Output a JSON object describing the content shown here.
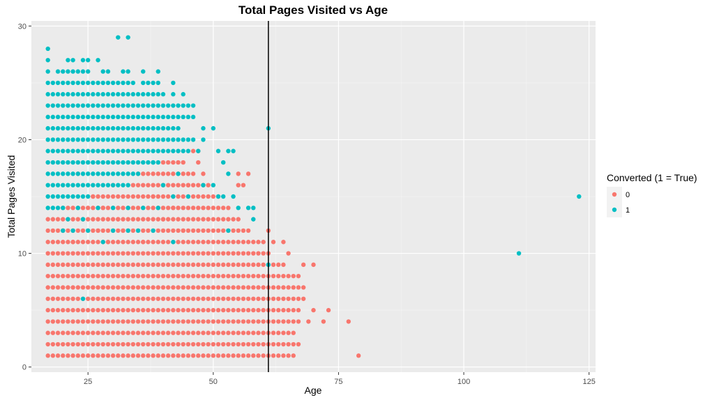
{
  "chart_data": {
    "type": "scatter",
    "title": "Total Pages Visited vs Age",
    "xlabel": "Age",
    "ylabel": "Total Pages Visited",
    "xlim": [
      13.7,
      126.3
    ],
    "ylim": [
      -0.45,
      30.45
    ],
    "x_ticks": [
      25,
      50,
      75,
      100,
      125
    ],
    "y_ticks": [
      0,
      10,
      20,
      30
    ],
    "grid": true,
    "reference_line": {
      "orientation": "vertical",
      "x": 61,
      "color": "#000000"
    },
    "legend": {
      "title": "Converted (1 = True)",
      "placement": "right"
    },
    "series": [
      {
        "name": "0",
        "color": "#F8766D",
        "row_spans": [
          {
            "y": 1,
            "x_from": 17,
            "x_to": 66
          },
          {
            "y": 2,
            "x_from": 17,
            "x_to": 67
          },
          {
            "y": 3,
            "x_from": 17,
            "x_to": 66
          },
          {
            "y": 4,
            "x_from": 17,
            "x_to": 67
          },
          {
            "y": 5,
            "x_from": 17,
            "x_to": 67
          },
          {
            "y": 6,
            "x_from": 17,
            "x_to": 68
          },
          {
            "y": 7,
            "x_from": 17,
            "x_to": 68
          },
          {
            "y": 8,
            "x_from": 17,
            "x_to": 67
          },
          {
            "y": 9,
            "x_from": 17,
            "x_to": 64
          },
          {
            "y": 10,
            "x_from": 17,
            "x_to": 61
          },
          {
            "y": 11,
            "x_from": 17,
            "x_to": 60
          },
          {
            "y": 12,
            "x_from": 17,
            "x_to": 57
          },
          {
            "y": 13,
            "x_from": 17,
            "x_to": 55
          },
          {
            "y": 14,
            "x_from": 20,
            "x_to": 53
          },
          {
            "y": 15,
            "x_from": 26,
            "x_to": 51
          },
          {
            "y": 16,
            "x_from": 34,
            "x_to": 49
          },
          {
            "y": 17,
            "x_from": 36,
            "x_to": 46
          },
          {
            "y": 18,
            "x_from": 40,
            "x_to": 44
          }
        ],
        "points": [
          [
            79,
            1
          ],
          [
            77,
            4
          ],
          [
            73,
            5
          ],
          [
            72,
            4
          ],
          [
            70,
            5
          ],
          [
            69,
            4
          ],
          [
            70,
            9
          ],
          [
            68,
            9
          ],
          [
            65,
            10
          ],
          [
            64,
            11
          ],
          [
            62,
            11
          ],
          [
            61,
            12
          ],
          [
            56,
            16
          ],
          [
            55,
            16
          ],
          [
            55,
            17
          ],
          [
            57,
            17
          ],
          [
            46,
            19
          ],
          [
            47,
            19
          ],
          [
            48,
            17
          ],
          [
            45,
            16
          ],
          [
            23,
            17
          ],
          [
            26,
            15
          ],
          [
            28,
            14
          ],
          [
            30,
            16
          ],
          [
            32,
            12
          ],
          [
            24,
            13
          ],
          [
            38,
            15
          ],
          [
            42,
            14
          ],
          [
            36,
            11
          ],
          [
            29,
            11
          ],
          [
            44,
            12
          ],
          [
            22,
            11
          ],
          [
            47,
            18
          ],
          [
            27,
            12
          ],
          [
            31,
            13
          ],
          [
            35,
            17
          ],
          [
            40,
            13
          ],
          [
            20,
            12
          ]
        ]
      },
      {
        "name": "1",
        "color": "#00BFC4",
        "row_spans": [
          {
            "y": 14,
            "x_from": 17,
            "x_to": 19
          },
          {
            "y": 15,
            "x_from": 17,
            "x_to": 25
          },
          {
            "y": 16,
            "x_from": 17,
            "x_to": 33
          },
          {
            "y": 17,
            "x_from": 17,
            "x_to": 35
          },
          {
            "y": 18,
            "x_from": 17,
            "x_to": 39
          },
          {
            "y": 19,
            "x_from": 17,
            "x_to": 45
          },
          {
            "y": 20,
            "x_from": 17,
            "x_to": 46
          },
          {
            "y": 21,
            "x_from": 17,
            "x_to": 43
          },
          {
            "y": 22,
            "x_from": 17,
            "x_to": 45
          },
          {
            "y": 23,
            "x_from": 17,
            "x_to": 46
          },
          {
            "y": 24,
            "x_from": 17,
            "x_to": 38
          },
          {
            "y": 25,
            "x_from": 17,
            "x_to": 34
          }
        ],
        "points": [
          [
            17,
            28
          ],
          [
            17,
            27
          ],
          [
            21,
            27
          ],
          [
            22,
            27
          ],
          [
            24,
            27
          ],
          [
            25,
            27
          ],
          [
            27,
            27
          ],
          [
            31,
            29
          ],
          [
            33,
            29
          ],
          [
            17,
            26
          ],
          [
            19,
            26
          ],
          [
            20,
            26
          ],
          [
            21,
            26
          ],
          [
            22,
            26
          ],
          [
            23,
            26
          ],
          [
            24,
            26
          ],
          [
            25,
            26
          ],
          [
            28,
            26
          ],
          [
            29,
            26
          ],
          [
            32,
            26
          ],
          [
            33,
            26
          ],
          [
            36,
            26
          ],
          [
            39,
            26
          ],
          [
            36,
            25
          ],
          [
            37,
            25
          ],
          [
            38,
            25
          ],
          [
            39,
            25
          ],
          [
            42,
            25
          ],
          [
            44,
            24
          ],
          [
            39,
            24
          ],
          [
            40,
            24
          ],
          [
            42,
            24
          ],
          [
            46,
            22
          ],
          [
            47,
            19
          ],
          [
            48,
            20
          ],
          [
            48,
            21
          ],
          [
            50,
            21
          ],
          [
            51,
            19
          ],
          [
            53,
            19
          ],
          [
            54,
            19
          ],
          [
            52,
            18
          ],
          [
            53,
            17
          ],
          [
            48,
            16
          ],
          [
            50,
            16
          ],
          [
            51,
            15
          ],
          [
            52,
            15
          ],
          [
            54,
            15
          ],
          [
            55,
            14
          ],
          [
            57,
            14
          ],
          [
            58,
            14
          ],
          [
            58,
            13
          ],
          [
            61,
            21
          ],
          [
            61,
            9
          ],
          [
            53,
            12
          ],
          [
            111,
            10
          ],
          [
            123,
            15
          ],
          [
            24,
            6
          ],
          [
            20,
            12
          ],
          [
            22,
            12
          ],
          [
            25,
            12
          ],
          [
            28,
            11
          ],
          [
            30,
            12
          ],
          [
            33,
            12
          ],
          [
            35,
            12
          ],
          [
            38,
            12
          ],
          [
            42,
            11
          ],
          [
            21,
            13
          ],
          [
            24,
            13
          ],
          [
            27,
            14
          ],
          [
            30,
            14
          ],
          [
            33,
            14
          ],
          [
            36,
            14
          ],
          [
            39,
            14
          ],
          [
            42,
            15
          ],
          [
            45,
            15
          ],
          [
            40,
            16
          ],
          [
            43,
            17
          ],
          [
            38,
            18
          ],
          [
            20,
            14
          ],
          [
            23,
            14
          ]
        ]
      }
    ]
  }
}
